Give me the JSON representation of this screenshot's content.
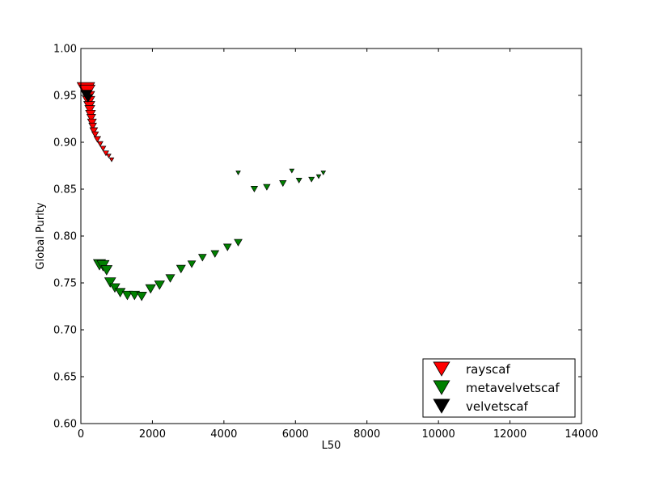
{
  "chart_data": {
    "type": "scatter",
    "title": "",
    "xlabel": "L50",
    "ylabel": "Global Purity",
    "xlim": [
      0,
      14000
    ],
    "ylim": [
      0.6,
      1.0
    ],
    "xticks": [
      0,
      2000,
      4000,
      6000,
      8000,
      10000,
      12000,
      14000
    ],
    "yticks": [
      0.6,
      0.65,
      0.7,
      0.75,
      0.8,
      0.85,
      0.9,
      0.95,
      1.0
    ],
    "xtick_labels": [
      "0",
      "2000",
      "4000",
      "6000",
      "8000",
      "10000",
      "12000",
      "14000"
    ],
    "ytick_labels": [
      "0.60",
      "0.65",
      "0.70",
      "0.75",
      "0.80",
      "0.85",
      "0.90",
      "0.95",
      "1.00"
    ],
    "grid": false,
    "legend_position": "bottom-right",
    "marker": "triangle-down",
    "series": [
      {
        "name": "rayscaf",
        "color": "#ff0000",
        "points": [
          {
            "x": 140,
            "y": 0.958,
            "size": 16
          },
          {
            "x": 180,
            "y": 0.956,
            "size": 14
          },
          {
            "x": 200,
            "y": 0.95,
            "size": 12
          },
          {
            "x": 220,
            "y": 0.945,
            "size": 11
          },
          {
            "x": 235,
            "y": 0.94,
            "size": 10
          },
          {
            "x": 250,
            "y": 0.936,
            "size": 9
          },
          {
            "x": 270,
            "y": 0.931,
            "size": 9
          },
          {
            "x": 290,
            "y": 0.927,
            "size": 8
          },
          {
            "x": 310,
            "y": 0.922,
            "size": 8
          },
          {
            "x": 330,
            "y": 0.918,
            "size": 7
          },
          {
            "x": 360,
            "y": 0.913,
            "size": 7
          },
          {
            "x": 400,
            "y": 0.909,
            "size": 6
          },
          {
            "x": 460,
            "y": 0.904,
            "size": 6
          },
          {
            "x": 540,
            "y": 0.899,
            "size": 5
          },
          {
            "x": 620,
            "y": 0.894,
            "size": 5
          },
          {
            "x": 700,
            "y": 0.889,
            "size": 5
          },
          {
            "x": 780,
            "y": 0.886,
            "size": 4
          },
          {
            "x": 860,
            "y": 0.882,
            "size": 4
          }
        ]
      },
      {
        "name": "metavelvetscaf",
        "color": "#008000",
        "points": [
          {
            "x": 520,
            "y": 0.771,
            "size": 11
          },
          {
            "x": 620,
            "y": 0.77,
            "size": 11
          },
          {
            "x": 720,
            "y": 0.765,
            "size": 10
          },
          {
            "x": 820,
            "y": 0.752,
            "size": 10
          },
          {
            "x": 950,
            "y": 0.746,
            "size": 9
          },
          {
            "x": 1100,
            "y": 0.741,
            "size": 9
          },
          {
            "x": 1300,
            "y": 0.738,
            "size": 9
          },
          {
            "x": 1500,
            "y": 0.738,
            "size": 9
          },
          {
            "x": 1700,
            "y": 0.737,
            "size": 9
          },
          {
            "x": 1950,
            "y": 0.745,
            "size": 9
          },
          {
            "x": 2200,
            "y": 0.749,
            "size": 9
          },
          {
            "x": 2500,
            "y": 0.756,
            "size": 8
          },
          {
            "x": 2800,
            "y": 0.766,
            "size": 8
          },
          {
            "x": 3100,
            "y": 0.771,
            "size": 7
          },
          {
            "x": 3400,
            "y": 0.778,
            "size": 7
          },
          {
            "x": 3750,
            "y": 0.782,
            "size": 7
          },
          {
            "x": 4100,
            "y": 0.789,
            "size": 7
          },
          {
            "x": 4400,
            "y": 0.794,
            "size": 7
          },
          {
            "x": 4850,
            "y": 0.851,
            "size": 6
          },
          {
            "x": 5200,
            "y": 0.853,
            "size": 6
          },
          {
            "x": 5650,
            "y": 0.857,
            "size": 6
          },
          {
            "x": 6100,
            "y": 0.86,
            "size": 5
          },
          {
            "x": 6450,
            "y": 0.861,
            "size": 5
          },
          {
            "x": 6650,
            "y": 0.864,
            "size": 4
          },
          {
            "x": 6780,
            "y": 0.868,
            "size": 4
          },
          {
            "x": 4400,
            "y": 0.868,
            "size": 4
          },
          {
            "x": 5900,
            "y": 0.87,
            "size": 4
          }
        ]
      },
      {
        "name": "velvetscaf",
        "color": "#000000",
        "points": [
          {
            "x": 160,
            "y": 0.952,
            "size": 10
          },
          {
            "x": 200,
            "y": 0.948,
            "size": 8
          }
        ]
      }
    ]
  }
}
